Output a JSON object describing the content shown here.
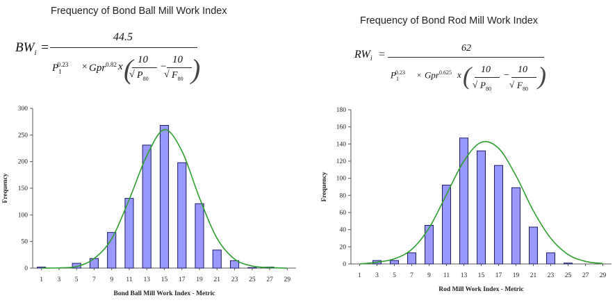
{
  "left": {
    "title": "Frequency of Bond Ball Mill Work Index",
    "formula": {
      "lhs": "BW",
      "lhs_sub": "i",
      "eq": "=",
      "numerator": "44.5",
      "p": "P",
      "p_sub": "1",
      "p_exp": "0.23",
      "times": "×",
      "gpr": "Gpr",
      "gpr_exp": "0.82",
      "x": "x",
      "ten_a": "10",
      "ten_b": "10",
      "rad_a": "P",
      "rad_a_sub": "80",
      "rad_b": "F",
      "rad_b_sub": "80",
      "minus": "−"
    }
  },
  "right": {
    "title": "Frequency of Bond Rod Mill Work Index",
    "formula": {
      "lhs": "RW",
      "lhs_sub": "i",
      "eq": "=",
      "numerator": "62",
      "p": "P",
      "p_sub": "1",
      "p_exp": "0.23",
      "times": "×",
      "gpr": "Gpr",
      "gpr_exp": "0.625",
      "x": "x",
      "ten_a": "10",
      "ten_b": "10",
      "rad_a": "P",
      "rad_a_sub": "80",
      "rad_b": "F",
      "rad_b_sub": "80",
      "minus": "−"
    }
  },
  "chart_data": [
    {
      "type": "bar",
      "categories": [
        "1",
        "3",
        "5",
        "7",
        "9",
        "11",
        "13",
        "15",
        "17",
        "19",
        "21",
        "23",
        "25",
        "27",
        "29"
      ],
      "series": [
        {
          "values": [
            2,
            0,
            9,
            18,
            67,
            131,
            231,
            268,
            198,
            121,
            34,
            14,
            1,
            2,
            0
          ]
        },
        {
          "type": "line",
          "values": [
            0,
            0.5,
            3,
            18,
            55,
            129,
            211,
            260,
            220,
            132,
            56,
            17,
            4,
            1,
            0
          ]
        }
      ],
      "xlabel": "Bond Ball Mill Work Index - Metric",
      "ylabel": "Frequency",
      "ylim": [
        0,
        300
      ],
      "yticks": [
        0,
        50,
        100,
        150,
        200,
        250,
        300
      ],
      "grid": false,
      "bar_color": "#9999ff",
      "line_color": "#2ca02c"
    },
    {
      "type": "bar",
      "categories": [
        "1",
        "3",
        "5",
        "7",
        "9",
        "11",
        "13",
        "15",
        "17",
        "19",
        "21",
        "23",
        "25",
        "27",
        "29"
      ],
      "series": [
        {
          "values": [
            0,
            4,
            4,
            13,
            45,
            92,
            147,
            132,
            115,
            89,
            43,
            13,
            1,
            0,
            0
          ]
        },
        {
          "type": "line",
          "values": [
            0,
            2,
            6,
            17,
            42,
            81,
            120,
            142,
            135,
            103,
            62,
            30,
            11,
            3,
            0.5
          ]
        }
      ],
      "xlabel": "Rod Mill Work Index - Metric",
      "ylabel": "Frequency",
      "ylim": [
        0,
        180
      ],
      "yticks": [
        0,
        20,
        40,
        60,
        80,
        100,
        120,
        140,
        160,
        180
      ],
      "grid": false,
      "bar_color": "#9999ff",
      "line_color": "#2ca02c"
    }
  ]
}
